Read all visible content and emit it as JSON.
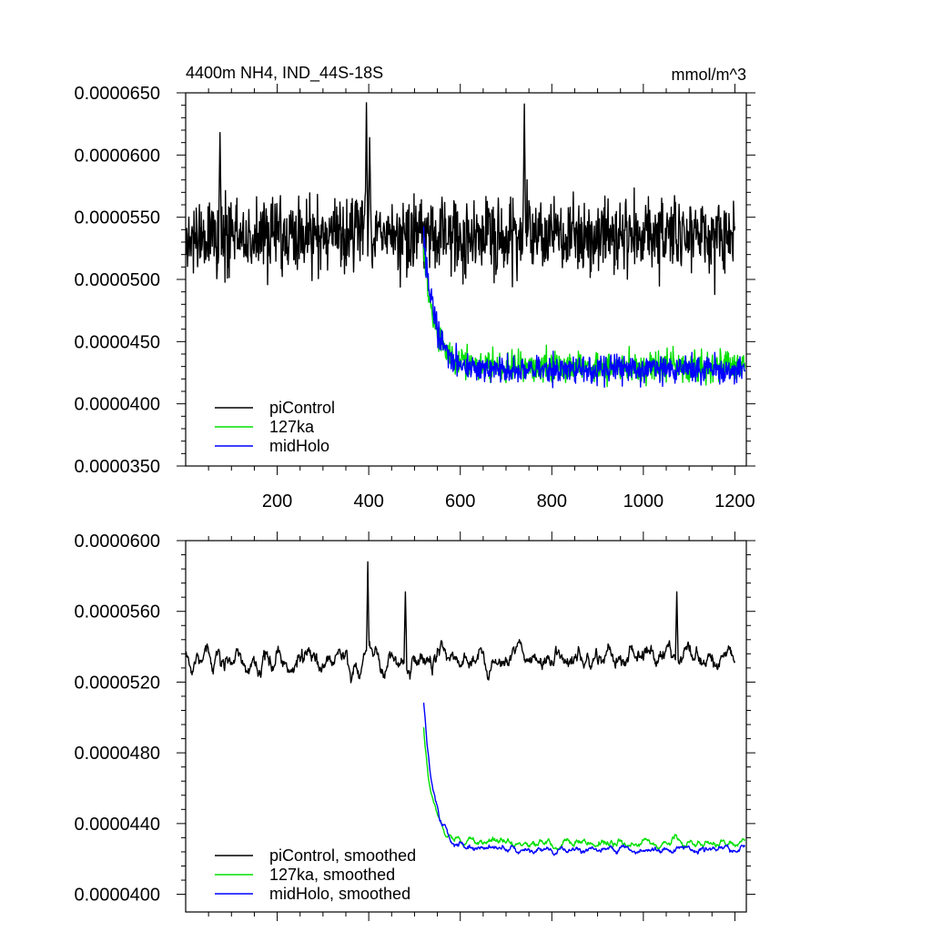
{
  "title_left": "4400m NH4, IND_44S-18S",
  "title_right": "mmol/m^3",
  "colors": {
    "piControl": "#000000",
    "127ka": "#00e000",
    "midHolo": "#0000ff"
  },
  "chart_data": [
    {
      "type": "line",
      "name": "raw",
      "xlim": [
        0,
        1225
      ],
      "ylim": [
        3.5e-05,
        6.5e-05
      ],
      "x_ticks": [
        200,
        400,
        600,
        800,
        1000,
        1200
      ],
      "y_ticks": [
        "0.0000350",
        "0.0000400",
        "0.0000450",
        "0.0000500",
        "0.0000550",
        "0.0000600",
        "0.0000650"
      ],
      "y_tick_values": [
        3.5e-05,
        4e-05,
        4.5e-05,
        5e-05,
        5.5e-05,
        6e-05,
        6.5e-05
      ],
      "legend_position": "bottom-left",
      "series": [
        {
          "name": "piControl",
          "color_key": "piControl",
          "x_range": [
            1,
            1200
          ],
          "baseline": 5.35e-05,
          "noise": 3e-06,
          "spike_at": [
            [
              395,
              6.42e-05
            ],
            [
              740,
              6.41e-05
            ],
            [
              75,
              6.18e-05
            ],
            [
              402,
              6.14e-05
            ]
          ]
        },
        {
          "name": "127ka",
          "color_key": "127ka",
          "x_range": [
            520,
            1222
          ],
          "start": 5.2e-05,
          "plateau": 4.3e-05,
          "tau": 25,
          "noise": 1.2e-06
        },
        {
          "name": "midHolo",
          "color_key": "midHolo",
          "x_range": [
            520,
            1222
          ],
          "start": 5.35e-05,
          "plateau": 4.28e-05,
          "tau": 25,
          "noise": 1.1e-06
        }
      ]
    },
    {
      "type": "line",
      "name": "smoothed",
      "xlim": [
        0,
        1225
      ],
      "ylim": [
        3.9e-05,
        6e-05
      ],
      "x_ticks": [
        200,
        400,
        600,
        800,
        1000,
        1200
      ],
      "y_ticks": [
        "0.0000400",
        "0.0000440",
        "0.0000480",
        "0.0000520",
        "0.0000560",
        "0.0000600"
      ],
      "y_tick_values": [
        4e-05,
        4.4e-05,
        4.8e-05,
        5.2e-05,
        5.6e-05,
        6e-05
      ],
      "legend_position": "bottom-left",
      "series": [
        {
          "name": "piControl, smoothed",
          "color_key": "piControl",
          "x_range": [
            1,
            1200
          ],
          "baseline": 5.33e-05,
          "noise": 1.2e-06,
          "spike_at": [
            [
              398,
              5.88e-05
            ],
            [
              480,
              5.71e-05
            ],
            [
              1073,
              5.71e-05
            ]
          ]
        },
        {
          "name": "127ka, smoothed",
          "color_key": "127ka",
          "x_range": [
            520,
            1222
          ],
          "start": 4.92e-05,
          "plateau": 4.29e-05,
          "tau": 22,
          "noise": 4e-07
        },
        {
          "name": "midHolo, smoothed",
          "color_key": "midHolo",
          "x_range": [
            520,
            1222
          ],
          "start": 5.1e-05,
          "plateau": 4.25e-05,
          "tau": 22,
          "noise": 4e-07
        }
      ]
    }
  ]
}
